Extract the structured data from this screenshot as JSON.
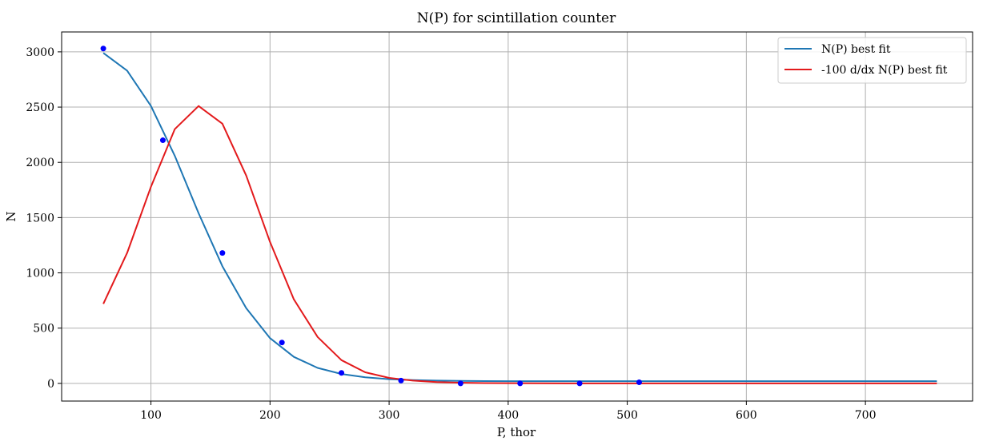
{
  "chart_data": {
    "type": "line",
    "title": "N(P) for scintillation counter",
    "xlabel": "P, thor",
    "ylabel": "N",
    "xlim": [
      25,
      790
    ],
    "ylim": [
      -160,
      3180
    ],
    "xticks": [
      100,
      200,
      300,
      400,
      500,
      600,
      700
    ],
    "yticks": [
      0,
      500,
      1000,
      1500,
      2000,
      2500,
      3000
    ],
    "grid": true,
    "legend_position": "top-right",
    "scatter": {
      "color": "#0000ff",
      "x": [
        60,
        110,
        160,
        210,
        260,
        310,
        360,
        410,
        460,
        510
      ],
      "y": [
        3030,
        2200,
        1180,
        370,
        95,
        25,
        0,
        0,
        0,
        10
      ]
    },
    "series": [
      {
        "name": "N(P) best fit",
        "color": "#1f77b4",
        "x": [
          60,
          80,
          100,
          120,
          140,
          160,
          180,
          200,
          220,
          240,
          260,
          280,
          300,
          320,
          340,
          360,
          380,
          400,
          450,
          500,
          550,
          600,
          650,
          700,
          760
        ],
        "y": [
          2990,
          2830,
          2510,
          2060,
          1540,
          1060,
          680,
          410,
          240,
          140,
          85,
          55,
          38,
          30,
          25,
          22,
          21,
          20,
          20,
          20,
          20,
          20,
          20,
          20,
          20
        ]
      },
      {
        "name": "-100 d/dx N(P) best fit",
        "color": "#e31a1c",
        "x": [
          60,
          80,
          100,
          120,
          140,
          160,
          180,
          200,
          220,
          240,
          260,
          280,
          300,
          320,
          340,
          360,
          380,
          400,
          450,
          500,
          550,
          600,
          650,
          700,
          760
        ],
        "y": [
          720,
          1180,
          1780,
          2300,
          2510,
          2350,
          1880,
          1280,
          760,
          420,
          210,
          100,
          50,
          25,
          12,
          6,
          3,
          2,
          0,
          0,
          0,
          0,
          0,
          0,
          0
        ]
      }
    ]
  }
}
